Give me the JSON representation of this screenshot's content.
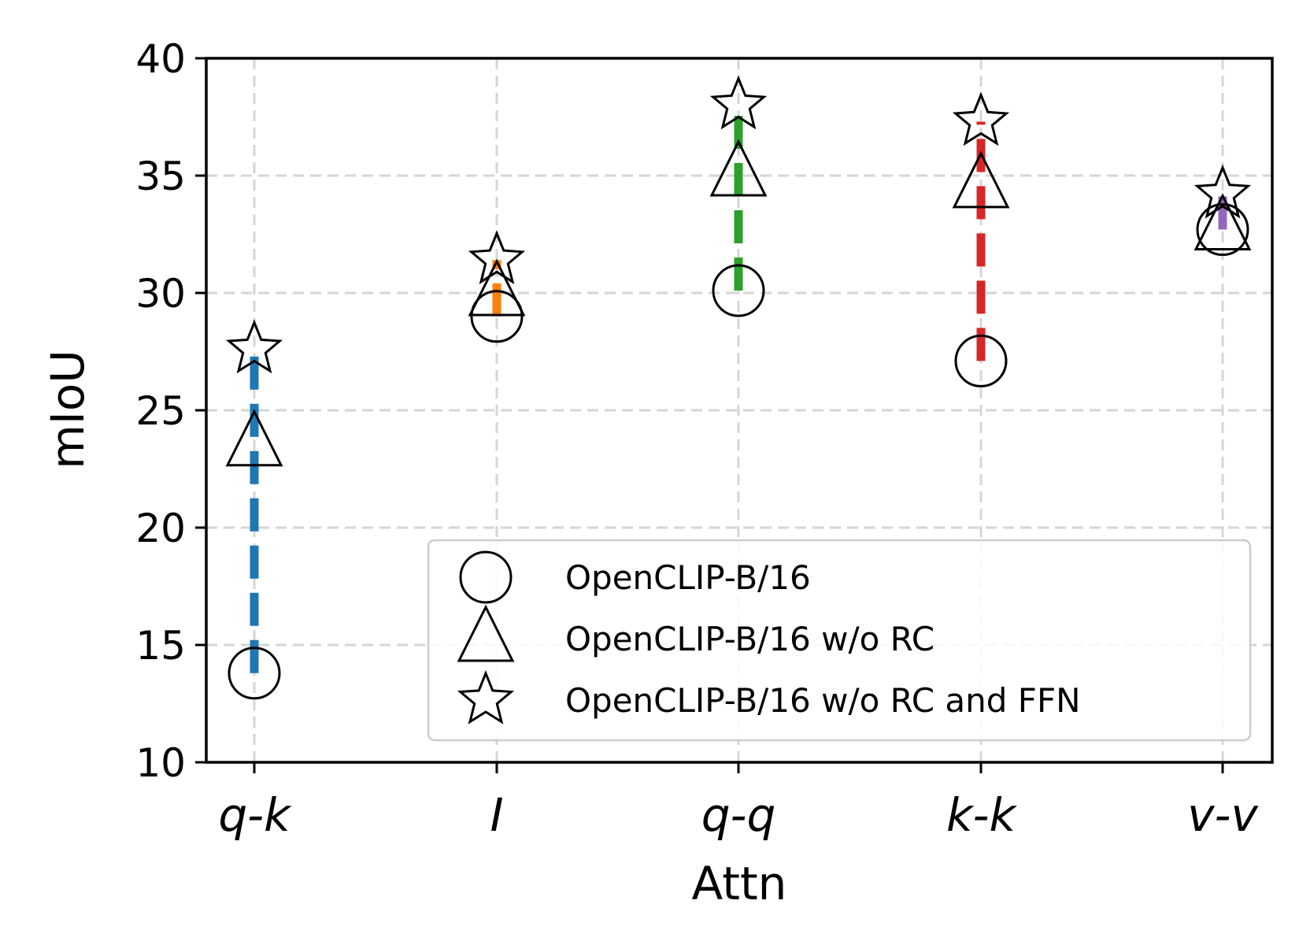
{
  "chart_data": {
    "type": "scatter",
    "title": "",
    "xlabel": "Attn",
    "ylabel": "mIoU",
    "categories": [
      "q-k",
      "I",
      "q-q",
      "k-k",
      "v-v"
    ],
    "ylim": [
      10,
      40
    ],
    "yticks": [
      10,
      15,
      20,
      25,
      30,
      35,
      40
    ],
    "grid": true,
    "legend_position": "lower-right",
    "series": [
      {
        "name": "OpenCLIP-B/16",
        "marker": "circle",
        "values": [
          13.8,
          29.0,
          30.1,
          27.1,
          32.7
        ]
      },
      {
        "name": "OpenCLIP-B/16 w/o RC",
        "marker": "triangle",
        "values": [
          23.6,
          30.0,
          35.1,
          34.6,
          32.8
        ]
      },
      {
        "name": "OpenCLIP-B/16 w/o RC and FFN",
        "marker": "star",
        "values": [
          27.6,
          31.4,
          38.0,
          37.3,
          34.2
        ]
      }
    ],
    "range_lines": {
      "style": "dashed",
      "colors": [
        "#1f77b4",
        "#ff7f0e",
        "#2ca02c",
        "#d62728",
        "#9467bd"
      ]
    }
  }
}
